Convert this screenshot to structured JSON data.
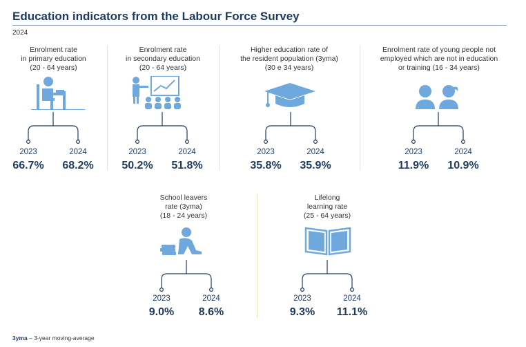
{
  "title": "Education indicators from the Labour Force Survey",
  "subtitle": "2024",
  "footnote": {
    "term": "3yma",
    "definition": "– 3-year moving-average"
  },
  "colors": {
    "icon": "#6fa8dc",
    "dark": "#1f3a5f",
    "divider": "#f2e3b8"
  },
  "chart_data": [
    {
      "type": "table",
      "title": "Enrolment rate\nin primary education\n(20 - 64 years)",
      "icon": "student-desk-icon",
      "series": [
        {
          "year": "2023",
          "value": 66.7,
          "label": "66.7%"
        },
        {
          "year": "2024",
          "value": 68.2,
          "label": "68.2%"
        }
      ]
    },
    {
      "type": "table",
      "title": "Enrolment rate\nin secondary education\n(20 - 64 years)",
      "icon": "classroom-presentation-icon",
      "series": [
        {
          "year": "2023",
          "value": 50.2,
          "label": "50.2%"
        },
        {
          "year": "2024",
          "value": 51.8,
          "label": "51.8%"
        }
      ]
    },
    {
      "type": "table",
      "title": "Higher education rate of\nthe resident population (3yma)\n(30 e 34 years)",
      "icon": "graduation-cap-icon",
      "series": [
        {
          "year": "2023",
          "value": 35.8,
          "label": "35.8%"
        },
        {
          "year": "2024",
          "value": 35.9,
          "label": "35.9%"
        }
      ]
    },
    {
      "type": "table",
      "title": "Enrolment rate of young people not\nemployed which are not in education\nor training (16 - 34 years)",
      "icon": "young-people-icon",
      "series": [
        {
          "year": "2023",
          "value": 11.9,
          "label": "11.9%"
        },
        {
          "year": "2024",
          "value": 10.9,
          "label": "10.9%"
        }
      ]
    },
    {
      "type": "table",
      "title": "School leavers\nrate (3yma)\n(18 - 24 years)",
      "icon": "school-leaver-icon",
      "series": [
        {
          "year": "2023",
          "value": 9.0,
          "label": "9.0%"
        },
        {
          "year": "2024",
          "value": 8.6,
          "label": "8.6%"
        }
      ]
    },
    {
      "type": "table",
      "title": "Lifelong\nlearning rate\n(25 - 64 years)",
      "icon": "open-book-icon",
      "series": [
        {
          "year": "2023",
          "value": 9.3,
          "label": "9.3%"
        },
        {
          "year": "2024",
          "value": 11.1,
          "label": "11.1%"
        }
      ]
    }
  ]
}
